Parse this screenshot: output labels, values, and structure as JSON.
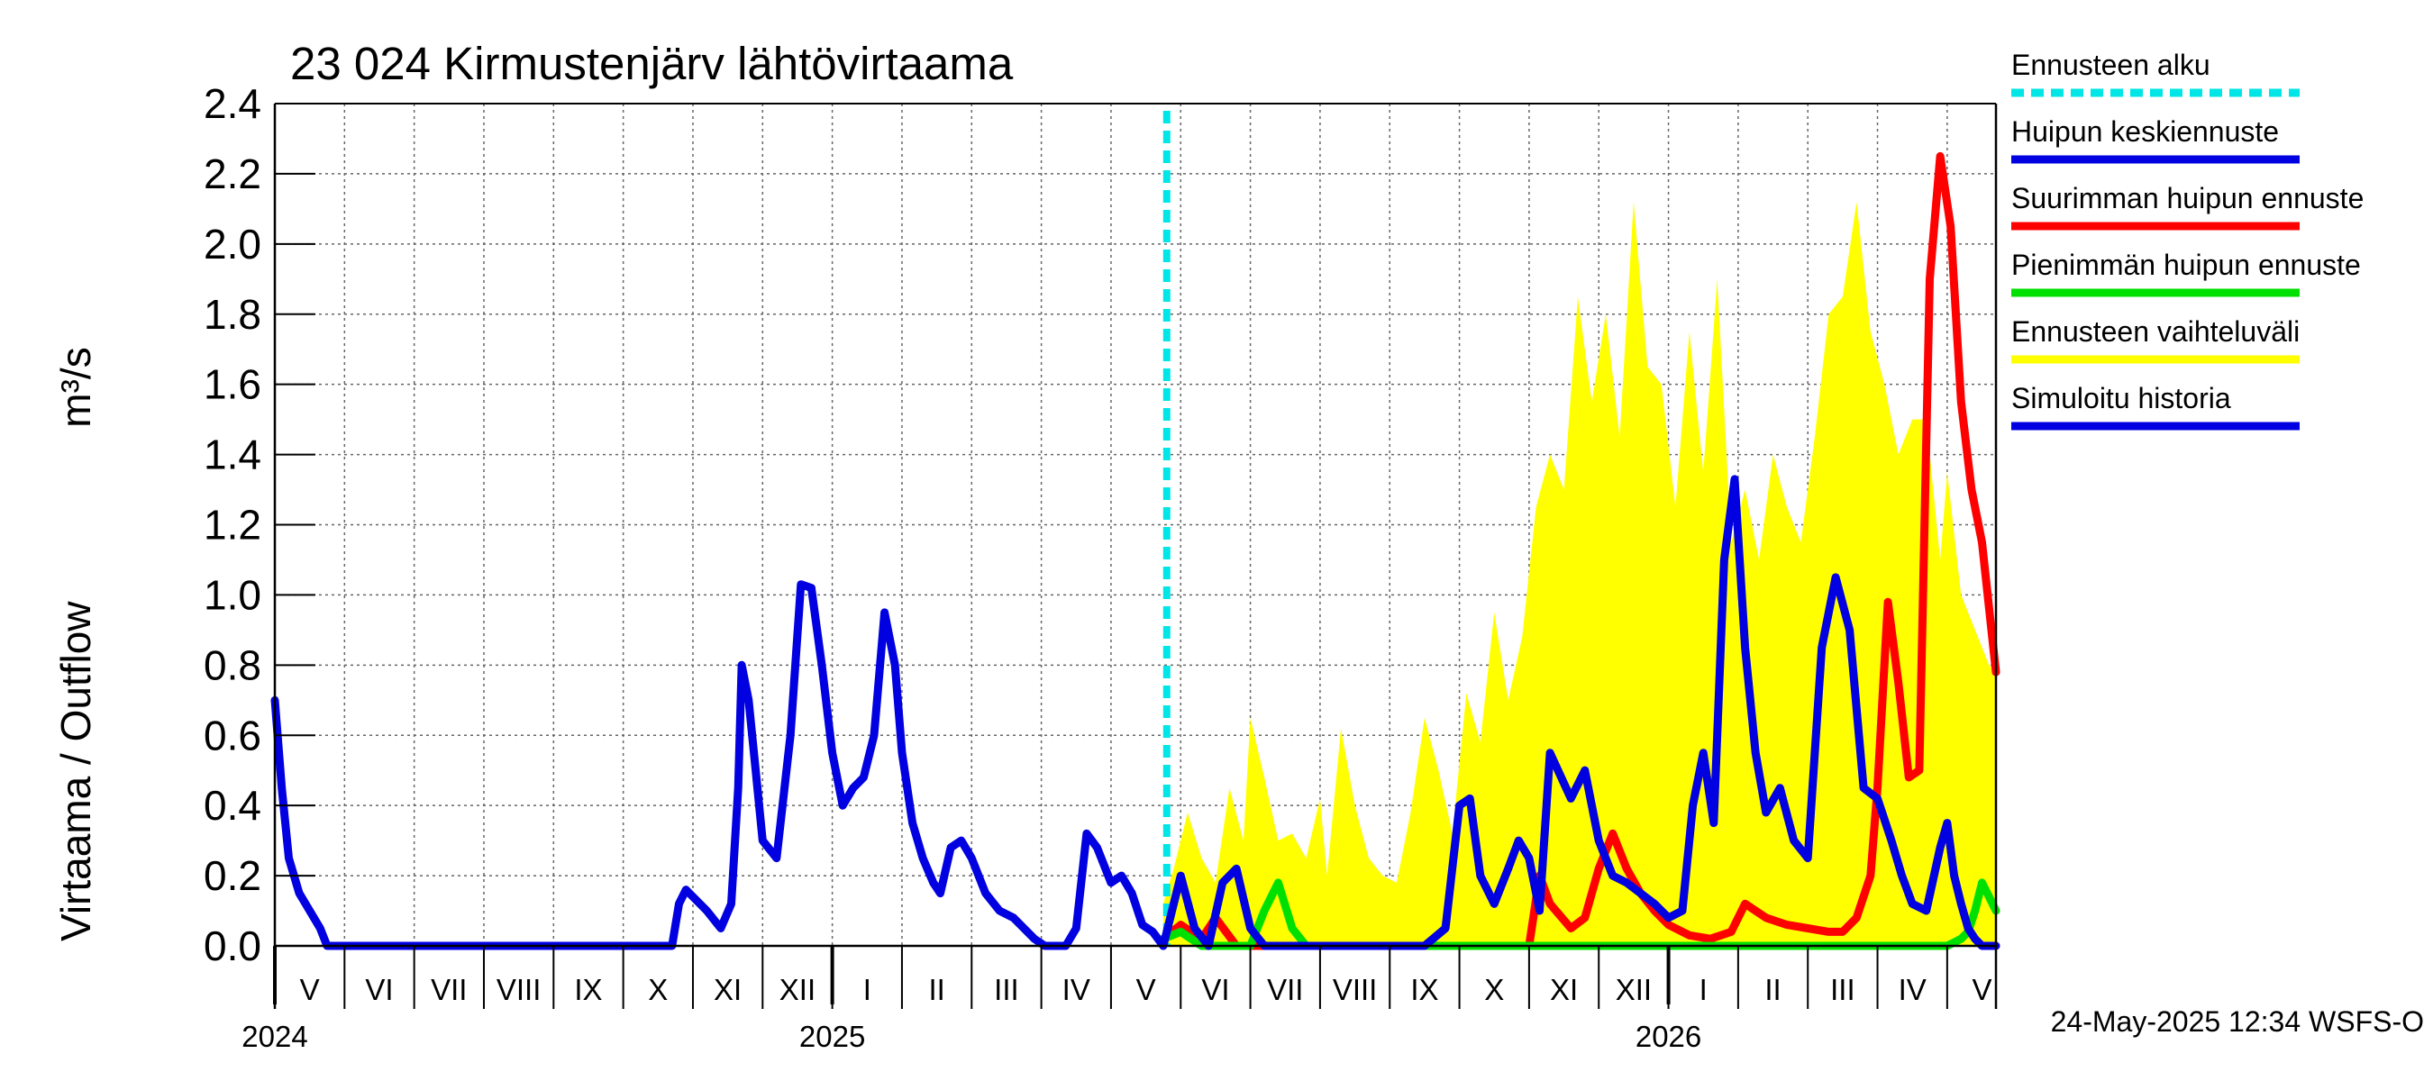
{
  "chart_data": {
    "type": "line",
    "title": "23 024 Kirmustenjärv lähtövirtaama",
    "ylabel": "Virtaama / Outflow",
    "yunit": "m³/s",
    "ylim": [
      0,
      2.4
    ],
    "yticks": [
      "0.0",
      "0.2",
      "0.4",
      "0.6",
      "0.8",
      "1.0",
      "1.2",
      "1.4",
      "1.6",
      "1.8",
      "2.0",
      "2.2",
      "2.4"
    ],
    "x_start_month_index": 0,
    "month_labels": [
      "V",
      "VI",
      "VII",
      "VIII",
      "IX",
      "X",
      "XI",
      "XII",
      "I",
      "II",
      "III",
      "IV",
      "V",
      "VI",
      "VII",
      "VIII",
      "IX",
      "X",
      "XI",
      "XII",
      "I",
      "II",
      "III",
      "IV",
      "V"
    ],
    "year_labels": [
      {
        "label": "2024",
        "month": 0
      },
      {
        "label": "2025",
        "month": 8
      },
      {
        "label": "2026",
        "month": 20
      }
    ],
    "forecast_start_month": 12.8,
    "x_end_month": 24.7,
    "timestamp": "24-May-2025 12:34 WSFS-O",
    "legend": [
      {
        "label": "Ennusteen alku",
        "color": "#00e5e5",
        "style": "dashed"
      },
      {
        "label": "Huipun keskiennuste",
        "color": "#0000e0",
        "style": "solid"
      },
      {
        "label": "Suurimman huipun ennuste",
        "color": "#ff0000",
        "style": "solid"
      },
      {
        "label": "Pienimmän huipun ennuste",
        "color": "#00e000",
        "style": "solid"
      },
      {
        "label": "Ennusteen vaihteluväli",
        "color": "#ffff00",
        "style": "solid"
      },
      {
        "label": "Simuloitu historia",
        "color": "#0000e0",
        "style": "solid"
      }
    ],
    "series": [
      {
        "name": "Ennusteen vaihteluväli",
        "color": "#ffff00",
        "kind": "band",
        "x": [
          12.75,
          12.9,
          13.1,
          13.3,
          13.5,
          13.7,
          13.9,
          14.0,
          14.2,
          14.4,
          14.6,
          14.8,
          15.0,
          15.1,
          15.3,
          15.5,
          15.7,
          15.9,
          16.1,
          16.3,
          16.5,
          16.7,
          16.9,
          17.1,
          17.3,
          17.5,
          17.7,
          17.9,
          18.1,
          18.3,
          18.5,
          18.7,
          18.9,
          19.1,
          19.3,
          19.5,
          19.7,
          19.9,
          20.1,
          20.3,
          20.5,
          20.7,
          20.9,
          21.1,
          21.3,
          21.5,
          21.7,
          21.9,
          22.1,
          22.3,
          22.5,
          22.7,
          22.9,
          23.1,
          23.3,
          23.5,
          23.7,
          23.9,
          24.0,
          24.2,
          24.4,
          24.6,
          24.7
        ],
        "upper": [
          0.12,
          0.22,
          0.38,
          0.25,
          0.18,
          0.45,
          0.3,
          0.65,
          0.48,
          0.3,
          0.32,
          0.25,
          0.42,
          0.2,
          0.62,
          0.4,
          0.25,
          0.2,
          0.18,
          0.38,
          0.65,
          0.5,
          0.32,
          0.72,
          0.58,
          0.95,
          0.7,
          0.88,
          1.25,
          1.4,
          1.3,
          1.85,
          1.55,
          1.8,
          1.45,
          2.12,
          1.65,
          1.6,
          1.25,
          1.75,
          1.35,
          1.9,
          1.15,
          1.3,
          1.1,
          1.4,
          1.25,
          1.15,
          1.45,
          1.8,
          1.85,
          2.12,
          1.75,
          1.6,
          1.4,
          1.5,
          1.5,
          1.1,
          1.35,
          1.0,
          0.9,
          0.8,
          0.78
        ],
        "lower": [
          0,
          0,
          0,
          0,
          0,
          0,
          0,
          0,
          0,
          0,
          0,
          0,
          0,
          0,
          0,
          0,
          0,
          0,
          0,
          0,
          0,
          0,
          0,
          0,
          0,
          0,
          0,
          0,
          0,
          0,
          0,
          0,
          0,
          0,
          0,
          0,
          0,
          0,
          0,
          0,
          0,
          0,
          0,
          0,
          0,
          0,
          0,
          0,
          0,
          0,
          0,
          0,
          0,
          0,
          0,
          0,
          0,
          0,
          0,
          0,
          0,
          0,
          0
        ]
      },
      {
        "name": "Suurimman huipun ennuste",
        "color": "#ff0000",
        "kind": "line",
        "x": [
          12.75,
          13.0,
          13.3,
          13.5,
          13.8,
          14.0,
          14.3,
          14.6,
          15.0,
          15.5,
          16.0,
          16.5,
          17.0,
          17.4,
          17.7,
          17.9,
          18.0,
          18.15,
          18.3,
          18.6,
          18.8,
          19.0,
          19.2,
          19.4,
          19.6,
          19.8,
          20.0,
          20.3,
          20.6,
          20.9,
          21.1,
          21.4,
          21.7,
          22.0,
          22.3,
          22.5,
          22.7,
          22.9,
          23.0,
          23.15,
          23.3,
          23.45,
          23.6,
          23.75,
          23.9,
          24.05,
          24.2,
          24.35,
          24.5,
          24.7
        ],
        "values": [
          0.02,
          0.06,
          0.02,
          0.08,
          0.0,
          0.0,
          0.0,
          0.0,
          0.0,
          0.0,
          0.0,
          0.0,
          0.0,
          0.0,
          0.0,
          0.0,
          0.0,
          0.2,
          0.12,
          0.05,
          0.08,
          0.22,
          0.32,
          0.22,
          0.15,
          0.1,
          0.06,
          0.03,
          0.02,
          0.04,
          0.12,
          0.08,
          0.06,
          0.05,
          0.04,
          0.04,
          0.08,
          0.2,
          0.45,
          0.98,
          0.75,
          0.48,
          0.5,
          1.9,
          2.25,
          2.05,
          1.55,
          1.3,
          1.15,
          0.78
        ]
      },
      {
        "name": "Pienimmän huipun ennuste",
        "color": "#00e000",
        "kind": "line",
        "x": [
          12.75,
          13.0,
          13.3,
          13.6,
          14.0,
          14.2,
          14.4,
          14.6,
          14.8,
          15.0,
          16.0,
          17.0,
          18.0,
          19.0,
          20.0,
          21.0,
          22.0,
          23.0,
          24.0,
          24.1,
          24.2,
          24.3,
          24.4,
          24.5,
          24.6,
          24.7
        ],
        "values": [
          0.02,
          0.04,
          0.0,
          0.0,
          0.0,
          0.1,
          0.18,
          0.05,
          0.0,
          0.0,
          0.0,
          0.0,
          0.0,
          0.0,
          0.0,
          0.0,
          0.0,
          0.0,
          0.0,
          0.01,
          0.02,
          0.04,
          0.1,
          0.18,
          0.14,
          0.1
        ]
      },
      {
        "name": "Huipun keskiennuste",
        "color": "#0000e0",
        "kind": "line",
        "x": [
          12.75,
          13.0,
          13.2,
          13.4,
          13.6,
          13.8,
          14.0,
          14.2,
          14.5,
          15.0,
          16.0,
          16.5,
          16.8,
          17.0,
          17.15,
          17.3,
          17.5,
          17.7,
          17.85,
          18.0,
          18.15,
          18.3,
          18.6,
          18.8,
          19.0,
          19.2,
          19.4,
          19.6,
          19.8,
          20.0,
          20.2,
          20.35,
          20.5,
          20.65,
          20.8,
          20.95,
          21.1,
          21.25,
          21.4,
          21.6,
          21.8,
          22.0,
          22.2,
          22.4,
          22.6,
          22.8,
          23.0,
          23.2,
          23.35,
          23.5,
          23.7,
          23.9,
          24.0,
          24.1,
          24.2,
          24.3,
          24.4,
          24.5,
          24.6,
          24.7
        ],
        "values": [
          0.0,
          0.2,
          0.05,
          0.0,
          0.18,
          0.22,
          0.05,
          0.0,
          0.0,
          0.0,
          0.0,
          0.0,
          0.05,
          0.4,
          0.42,
          0.2,
          0.12,
          0.22,
          0.3,
          0.25,
          0.1,
          0.55,
          0.42,
          0.5,
          0.3,
          0.2,
          0.18,
          0.15,
          0.12,
          0.08,
          0.1,
          0.4,
          0.55,
          0.35,
          1.1,
          1.33,
          0.85,
          0.55,
          0.38,
          0.45,
          0.3,
          0.25,
          0.85,
          1.05,
          0.9,
          0.45,
          0.42,
          0.3,
          0.2,
          0.12,
          0.1,
          0.28,
          0.35,
          0.2,
          0.12,
          0.05,
          0.02,
          0.0,
          0.0,
          0.0
        ]
      },
      {
        "name": "Simuloitu historia",
        "color": "#0000e0",
        "kind": "line",
        "x": [
          0.0,
          0.1,
          0.2,
          0.35,
          0.5,
          0.65,
          0.75,
          0.85,
          1.0,
          2.0,
          3.0,
          4.0,
          5.0,
          5.7,
          5.8,
          5.9,
          6.0,
          6.2,
          6.4,
          6.55,
          6.65,
          6.7,
          6.8,
          6.9,
          7.0,
          7.2,
          7.4,
          7.55,
          7.7,
          7.85,
          8.0,
          8.15,
          8.3,
          8.45,
          8.6,
          8.75,
          8.9,
          9.0,
          9.15,
          9.3,
          9.45,
          9.55,
          9.7,
          9.85,
          10.0,
          10.2,
          10.4,
          10.6,
          10.75,
          10.9,
          11.05,
          11.2,
          11.35,
          11.5,
          11.65,
          11.8,
          12.0,
          12.15,
          12.3,
          12.45,
          12.6,
          12.75
        ],
        "values": [
          0.7,
          0.45,
          0.25,
          0.15,
          0.1,
          0.05,
          0.0,
          0.0,
          0.0,
          0.0,
          0.0,
          0.0,
          0.0,
          0.0,
          0.12,
          0.16,
          0.14,
          0.1,
          0.05,
          0.12,
          0.45,
          0.8,
          0.7,
          0.5,
          0.3,
          0.25,
          0.6,
          1.03,
          1.02,
          0.8,
          0.55,
          0.4,
          0.45,
          0.48,
          0.6,
          0.95,
          0.8,
          0.55,
          0.35,
          0.25,
          0.18,
          0.15,
          0.28,
          0.3,
          0.25,
          0.15,
          0.1,
          0.08,
          0.05,
          0.02,
          0.0,
          0.0,
          0.0,
          0.05,
          0.32,
          0.28,
          0.18,
          0.2,
          0.15,
          0.06,
          0.04,
          0.0
        ]
      }
    ]
  }
}
